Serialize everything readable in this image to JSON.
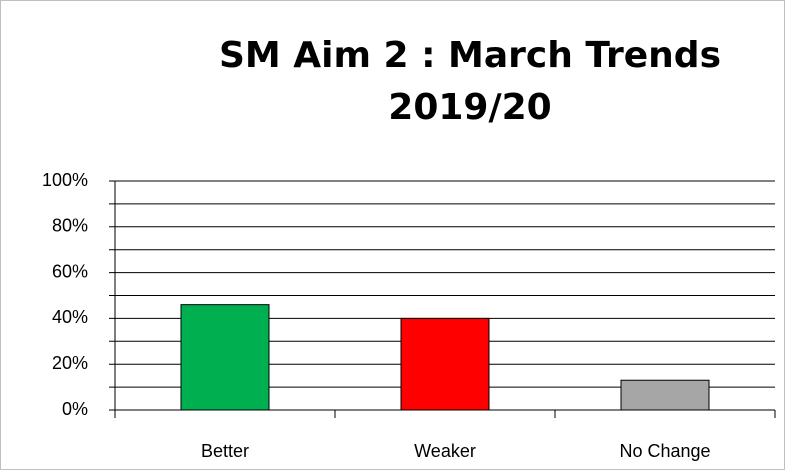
{
  "chart_data": {
    "type": "bar",
    "title": "SM Aim 2 : March Trends 2019/20",
    "categories": [
      "Better",
      "Weaker",
      "No Change"
    ],
    "values": [
      46,
      40,
      13
    ],
    "colors": [
      "#00b050",
      "#ff0000",
      "#a6a6a6"
    ],
    "ylim": [
      0,
      100
    ],
    "yticks": [
      {
        "value": 0,
        "label": "0%"
      },
      {
        "value": 20,
        "label": "20%"
      },
      {
        "value": 40,
        "label": "40%"
      },
      {
        "value": 60,
        "label": "60%"
      },
      {
        "value": 80,
        "label": "80%"
      },
      {
        "value": 100,
        "label": "100%"
      }
    ],
    "minor_yticks": [
      10,
      30,
      50,
      70,
      90
    ],
    "grid": true
  }
}
